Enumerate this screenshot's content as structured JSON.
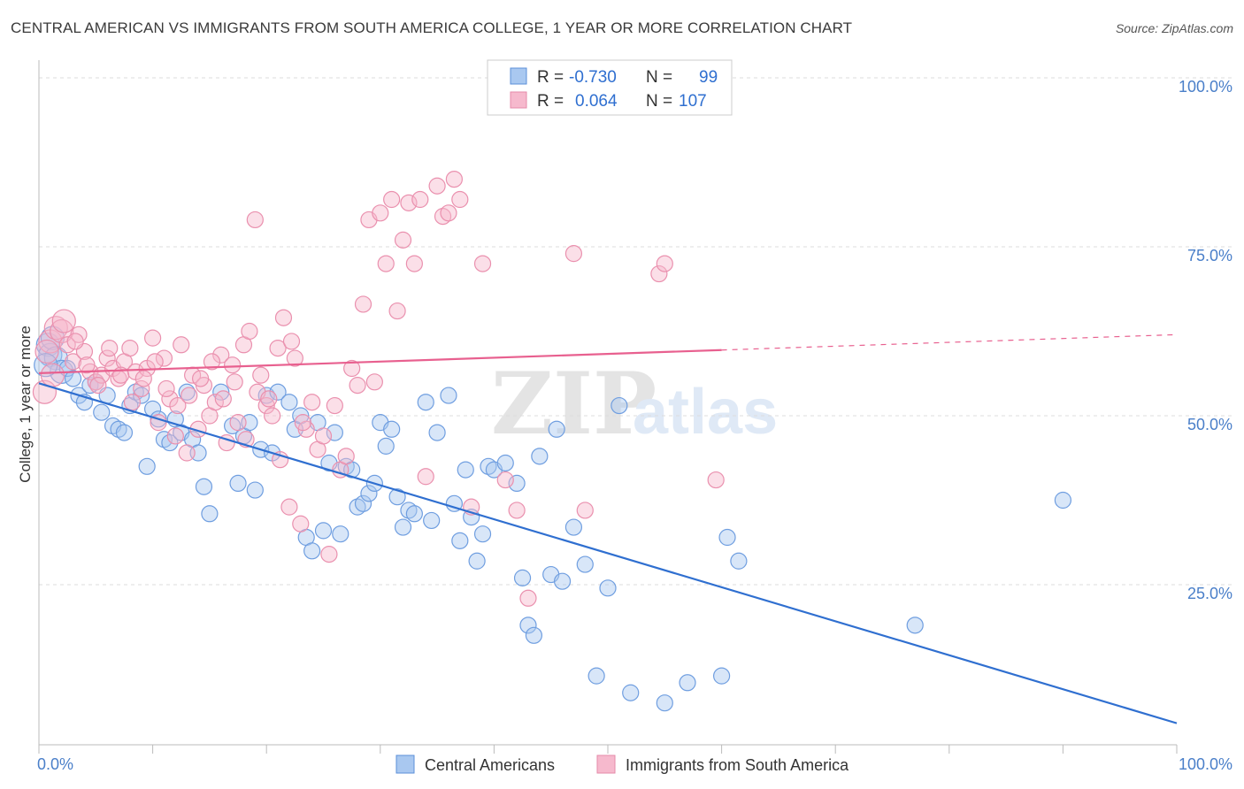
{
  "header": {
    "title": "CENTRAL AMERICAN VS IMMIGRANTS FROM SOUTH AMERICA COLLEGE, 1 YEAR OR MORE CORRELATION CHART",
    "source": "Source: ZipAtlas.com"
  },
  "watermark": {
    "zip": "ZIP",
    "atlas": "atlas"
  },
  "legend_box": {
    "rows": [
      {
        "r_label": "R =",
        "r_value": "-0.730",
        "n_label": "N =",
        "n_value": "99"
      },
      {
        "r_label": "R =",
        "r_value": "0.064",
        "n_label": "N =",
        "n_value": "107"
      }
    ]
  },
  "chart_data": {
    "type": "scatter",
    "xlabel": "",
    "ylabel": "College, 1 year or more",
    "x_tick_labels": [
      "0.0%",
      "100.0%"
    ],
    "y_tick_labels": [
      "25.0%",
      "50.0%",
      "75.0%",
      "100.0%"
    ],
    "xlim": [
      0,
      100
    ],
    "ylim": [
      0,
      100
    ],
    "grid": "horizontal dashed",
    "legend_position": "top-center and bottom",
    "colors": {
      "blue": "#2f6fd0",
      "blue_fill": "#a9c8f0",
      "pink": "#e8608f",
      "pink_fill": "#f6b9cd"
    },
    "series": [
      {
        "name": "Central Americans",
        "color": "blue",
        "trend": {
          "x0": 0,
          "y0": 54.8,
          "x1": 100,
          "y1": 4.5,
          "dashed_from": null
        },
        "points": [
          [
            0.8,
            60.5
          ],
          [
            1.0,
            59.0
          ],
          [
            1.2,
            61.5
          ],
          [
            1.5,
            58.5
          ],
          [
            2.0,
            56.5
          ],
          [
            2.5,
            57.0
          ],
          [
            3.0,
            55.5
          ],
          [
            3.5,
            53.0
          ],
          [
            4.0,
            52.0
          ],
          [
            4.5,
            54.5
          ],
          [
            5.0,
            55.0
          ],
          [
            5.5,
            50.5
          ],
          [
            6.0,
            53.0
          ],
          [
            6.5,
            48.5
          ],
          [
            7.0,
            48.0
          ],
          [
            7.5,
            47.5
          ],
          [
            8.0,
            51.5
          ],
          [
            8.5,
            53.5
          ],
          [
            9.0,
            53.0
          ],
          [
            9.5,
            42.5
          ],
          [
            10.0,
            51.0
          ],
          [
            10.5,
            49.5
          ],
          [
            11.0,
            46.5
          ],
          [
            11.5,
            46.0
          ],
          [
            12.0,
            49.5
          ],
          [
            12.5,
            47.5
          ],
          [
            13.0,
            53.5
          ],
          [
            13.5,
            46.5
          ],
          [
            14.0,
            44.5
          ],
          [
            14.5,
            39.5
          ],
          [
            15.0,
            35.5
          ],
          [
            16.0,
            53.5
          ],
          [
            17.0,
            48.5
          ],
          [
            17.5,
            40.0
          ],
          [
            18.0,
            47.0
          ],
          [
            18.5,
            49.0
          ],
          [
            19.0,
            39.0
          ],
          [
            19.5,
            45.0
          ],
          [
            20.0,
            53.0
          ],
          [
            20.5,
            44.5
          ],
          [
            21.0,
            53.5
          ],
          [
            22.0,
            52.0
          ],
          [
            22.5,
            48.0
          ],
          [
            23.0,
            50.0
          ],
          [
            23.5,
            32.0
          ],
          [
            24.0,
            30.0
          ],
          [
            24.5,
            49.0
          ],
          [
            25.0,
            33.0
          ],
          [
            25.5,
            43.0
          ],
          [
            26.0,
            47.5
          ],
          [
            26.5,
            32.5
          ],
          [
            27.0,
            42.5
          ],
          [
            27.5,
            42.0
          ],
          [
            28.0,
            36.5
          ],
          [
            28.5,
            37.0
          ],
          [
            29.0,
            38.5
          ],
          [
            29.5,
            40.0
          ],
          [
            30.0,
            49.0
          ],
          [
            30.5,
            45.5
          ],
          [
            31.0,
            48.0
          ],
          [
            31.5,
            38.0
          ],
          [
            32.0,
            33.5
          ],
          [
            32.5,
            36.0
          ],
          [
            33.0,
            35.5
          ],
          [
            34.0,
            52.0
          ],
          [
            34.5,
            34.5
          ],
          [
            35.0,
            47.5
          ],
          [
            36.0,
            53.0
          ],
          [
            36.5,
            37.0
          ],
          [
            37.0,
            31.5
          ],
          [
            37.5,
            42.0
          ],
          [
            38.0,
            35.0
          ],
          [
            38.5,
            28.5
          ],
          [
            39.0,
            32.5
          ],
          [
            39.5,
            42.5
          ],
          [
            40.0,
            42.0
          ],
          [
            41.0,
            43.0
          ],
          [
            42.0,
            40.0
          ],
          [
            42.5,
            26.0
          ],
          [
            43.0,
            19.0
          ],
          [
            43.5,
            17.5
          ],
          [
            44.0,
            44.0
          ],
          [
            45.0,
            26.5
          ],
          [
            45.5,
            48.0
          ],
          [
            46.0,
            25.5
          ],
          [
            47.0,
            33.5
          ],
          [
            48.0,
            28.0
          ],
          [
            49.0,
            11.5
          ],
          [
            50.0,
            24.5
          ],
          [
            51.0,
            51.5
          ],
          [
            52.0,
            9.0
          ],
          [
            55.0,
            7.5
          ],
          [
            57.0,
            10.5
          ],
          [
            60.0,
            11.5
          ],
          [
            60.5,
            32.0
          ],
          [
            61.5,
            28.5
          ],
          [
            77.0,
            19.0
          ],
          [
            90.0,
            37.5
          ],
          [
            0.6,
            57.5
          ]
        ]
      },
      {
        "name": "Immigrants from South America",
        "color": "pink",
        "trend": {
          "x0": 0,
          "y0": 56.3,
          "x1": 100,
          "y1": 62.0,
          "solid_until": 60
        },
        "points": [
          [
            0.5,
            53.5
          ],
          [
            1.0,
            61.0
          ],
          [
            1.5,
            63.0
          ],
          [
            2.0,
            62.5
          ],
          [
            2.5,
            60.5
          ],
          [
            3.0,
            58.0
          ],
          [
            3.5,
            62.0
          ],
          [
            4.0,
            59.5
          ],
          [
            4.5,
            56.5
          ],
          [
            5.0,
            55.0
          ],
          [
            5.5,
            56.0
          ],
          [
            6.0,
            58.5
          ],
          [
            6.5,
            57.0
          ],
          [
            7.0,
            55.5
          ],
          [
            7.5,
            58.0
          ],
          [
            8.0,
            60.0
          ],
          [
            8.5,
            56.5
          ],
          [
            9.0,
            54.0
          ],
          [
            9.5,
            57.0
          ],
          [
            10.0,
            61.5
          ],
          [
            10.5,
            49.0
          ],
          [
            11.0,
            58.5
          ],
          [
            11.5,
            52.5
          ],
          [
            12.0,
            47.0
          ],
          [
            12.5,
            60.5
          ],
          [
            13.0,
            44.5
          ],
          [
            13.5,
            56.0
          ],
          [
            14.0,
            48.0
          ],
          [
            14.5,
            54.5
          ],
          [
            15.0,
            50.0
          ],
          [
            15.5,
            52.0
          ],
          [
            16.0,
            59.0
          ],
          [
            16.5,
            46.0
          ],
          [
            17.0,
            57.5
          ],
          [
            17.5,
            49.0
          ],
          [
            18.0,
            60.5
          ],
          [
            18.5,
            62.5
          ],
          [
            19.0,
            79.0
          ],
          [
            19.5,
            56.0
          ],
          [
            20.0,
            51.5
          ],
          [
            20.5,
            50.0
          ],
          [
            21.0,
            60.0
          ],
          [
            21.5,
            64.5
          ],
          [
            22.0,
            36.5
          ],
          [
            22.5,
            58.5
          ],
          [
            23.0,
            34.0
          ],
          [
            23.5,
            48.0
          ],
          [
            24.0,
            52.0
          ],
          [
            24.5,
            45.0
          ],
          [
            25.0,
            47.0
          ],
          [
            25.5,
            29.5
          ],
          [
            26.0,
            51.5
          ],
          [
            26.5,
            42.0
          ],
          [
            27.0,
            44.0
          ],
          [
            27.5,
            57.0
          ],
          [
            28.0,
            54.5
          ],
          [
            28.5,
            66.5
          ],
          [
            29.0,
            79.0
          ],
          [
            29.5,
            55.0
          ],
          [
            30.0,
            80.0
          ],
          [
            30.5,
            72.5
          ],
          [
            31.0,
            82.0
          ],
          [
            31.5,
            65.5
          ],
          [
            32.0,
            76.0
          ],
          [
            32.5,
            81.5
          ],
          [
            33.0,
            72.5
          ],
          [
            33.5,
            82.0
          ],
          [
            34.0,
            41.0
          ],
          [
            35.0,
            84.0
          ],
          [
            35.5,
            79.5
          ],
          [
            36.0,
            80.0
          ],
          [
            36.5,
            85.0
          ],
          [
            37.0,
            82.0
          ],
          [
            38.0,
            36.5
          ],
          [
            39.0,
            72.5
          ],
          [
            41.0,
            40.5
          ],
          [
            42.0,
            36.0
          ],
          [
            43.0,
            23.0
          ],
          [
            47.0,
            74.0
          ],
          [
            48.0,
            36.0
          ],
          [
            54.5,
            71.0
          ],
          [
            55.0,
            72.5
          ],
          [
            59.5,
            40.5
          ],
          [
            0.7,
            59.5
          ],
          [
            1.2,
            56.0
          ],
          [
            2.2,
            64.0
          ],
          [
            3.2,
            61.0
          ],
          [
            4.2,
            57.5
          ],
          [
            5.2,
            54.5
          ],
          [
            6.2,
            60.0
          ],
          [
            7.2,
            56.0
          ],
          [
            8.2,
            52.0
          ],
          [
            9.2,
            55.5
          ],
          [
            10.2,
            58.0
          ],
          [
            11.2,
            54.0
          ],
          [
            12.2,
            51.5
          ],
          [
            13.2,
            53.0
          ],
          [
            14.2,
            55.5
          ],
          [
            15.2,
            58.0
          ],
          [
            16.2,
            52.5
          ],
          [
            17.2,
            55.0
          ],
          [
            18.2,
            46.5
          ],
          [
            19.2,
            53.5
          ],
          [
            20.2,
            52.5
          ],
          [
            21.2,
            43.5
          ],
          [
            22.2,
            61.0
          ],
          [
            23.2,
            49.0
          ]
        ]
      }
    ]
  },
  "bottom_legend": [
    {
      "label": "Central Americans",
      "color": "blue"
    },
    {
      "label": "Immigrants from South America",
      "color": "pink"
    }
  ]
}
